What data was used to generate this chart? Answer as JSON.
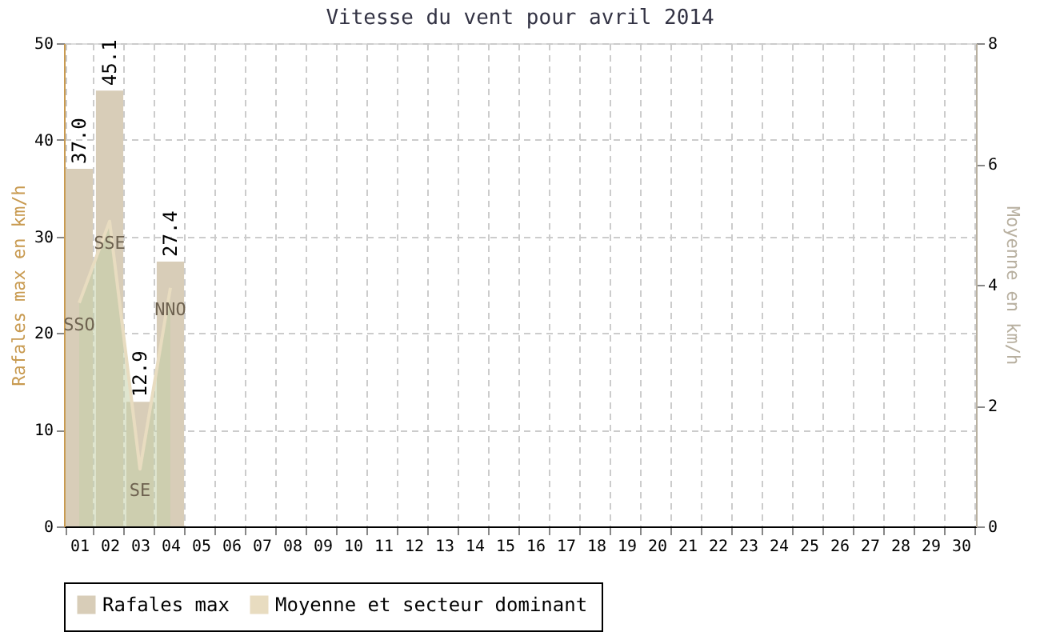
{
  "chart_data": {
    "type": "bar",
    "title": "Vitesse du vent pour avril 2014",
    "categories": [
      "01",
      "02",
      "03",
      "04",
      "05",
      "06",
      "07",
      "08",
      "09",
      "10",
      "11",
      "12",
      "13",
      "14",
      "15",
      "16",
      "17",
      "18",
      "19",
      "20",
      "21",
      "22",
      "23",
      "24",
      "25",
      "26",
      "27",
      "28",
      "29",
      "30"
    ],
    "series": [
      {
        "name": "Rafales max",
        "color": "#d8cdb8",
        "values": [
          37.0,
          45.1,
          12.9,
          27.4,
          null,
          null,
          null,
          null,
          null,
          null,
          null,
          null,
          null,
          null,
          null,
          null,
          null,
          null,
          null,
          null,
          null,
          null,
          null,
          null,
          null,
          null,
          null,
          null,
          null,
          null
        ],
        "value_labels": [
          "37.0",
          "45.1",
          "12.9",
          "27.4",
          null,
          null,
          null,
          null,
          null,
          null,
          null,
          null,
          null,
          null,
          null,
          null,
          null,
          null,
          null,
          null,
          null,
          null,
          null,
          null,
          null,
          null,
          null,
          null,
          null,
          null
        ]
      },
      {
        "name": "Moyenne et secteur dominant",
        "type": "area",
        "axis": "y2",
        "color": "#e8dcc0",
        "values": [
          3.7,
          5.05,
          0.95,
          3.95,
          null,
          null,
          null,
          null,
          null,
          null,
          null,
          null,
          null,
          null,
          null,
          null,
          null,
          null,
          null,
          null,
          null,
          null,
          null,
          null,
          null,
          null,
          null,
          null,
          null,
          null
        ]
      }
    ],
    "annotations": [
      "SSO",
      "SSE",
      "SE",
      "NNO"
    ],
    "ylabel": "Rafales max en km/h",
    "y2label": "Moyenne en km/h",
    "ylim": [
      0,
      50
    ],
    "yticks": [
      0,
      10,
      20,
      30,
      40,
      50
    ],
    "y2lim": [
      0,
      8
    ],
    "y2ticks": [
      0,
      2,
      4,
      6,
      8
    ],
    "grid": true,
    "legend": "bottom",
    "line_style": "solid",
    "marker": "none"
  }
}
